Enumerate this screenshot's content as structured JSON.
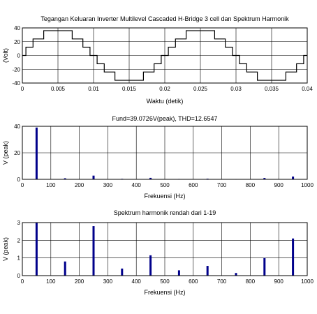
{
  "chart_data": [
    {
      "type": "line",
      "title": "Tegangan Keluaran Inverter Multilevel Cascaded H-Bridge 3 cell dan Spektrum Harmonik",
      "xlabel": "Waktu (detik)",
      "ylabel": "(Volt)",
      "xlim": [
        0,
        0.04
      ],
      "ylim": [
        -40,
        40
      ],
      "xticks": [
        0,
        0.005,
        0.01,
        0.015,
        0.02,
        0.025,
        0.03,
        0.035,
        0.04
      ],
      "xtick_labels": [
        "0",
        "0.005",
        "0.01",
        "0.015",
        "0.02",
        "0.025",
        "0.03",
        "0.035",
        "0.04"
      ],
      "yticks": [
        -40,
        -20,
        0,
        20,
        40
      ],
      "ytick_labels": [
        "-40",
        "-20",
        "0",
        "20",
        "40"
      ],
      "grid": true,
      "series": [
        {
          "color": "#000000",
          "x": [
            0,
            0.0005,
            0.0005,
            0.0015,
            0.0015,
            0.003,
            0.003,
            0.007,
            0.007,
            0.0085,
            0.0085,
            0.0095,
            0.0095,
            0.0105,
            0.0105,
            0.0115,
            0.0115,
            0.013,
            0.013,
            0.017,
            0.017,
            0.0185,
            0.0185,
            0.0195,
            0.0195,
            0.0205,
            0.0205,
            0.0215,
            0.0215,
            0.023,
            0.023,
            0.027,
            0.027,
            0.0285,
            0.0285,
            0.0295,
            0.0295,
            0.0305,
            0.0305,
            0.0315,
            0.0315,
            0.033,
            0.033,
            0.037,
            0.037,
            0.0385,
            0.0385,
            0.0395,
            0.0395,
            0.04
          ],
          "y": [
            0,
            0,
            12,
            12,
            24,
            24,
            36,
            36,
            24,
            24,
            12,
            12,
            0,
            0,
            -12,
            -12,
            -24,
            -24,
            -36,
            -36,
            -24,
            -24,
            -12,
            -12,
            0,
            0,
            12,
            12,
            24,
            24,
            36,
            36,
            24,
            24,
            12,
            12,
            0,
            0,
            -12,
            -12,
            -24,
            -24,
            -36,
            -36,
            -24,
            -24,
            -12,
            -12,
            0,
            0
          ]
        }
      ]
    },
    {
      "type": "bar",
      "title": "Fund=39.0726V(peak), THD=12.6547",
      "xlabel": "Frekuensi (Hz)",
      "ylabel": "V (peak)",
      "xlim": [
        0,
        1000
      ],
      "ylim": [
        0,
        40
      ],
      "xticks": [
        0,
        100,
        200,
        300,
        400,
        500,
        600,
        700,
        800,
        900,
        1000
      ],
      "xtick_labels": [
        "0",
        "100",
        "200",
        "300",
        "400",
        "500",
        "600",
        "700",
        "800",
        "900",
        "1000"
      ],
      "yticks": [
        0,
        20,
        40
      ],
      "ytick_labels": [
        "0",
        "20",
        "40"
      ],
      "grid": true,
      "series": [
        {
          "color": "#00008b",
          "x": [
            50,
            150,
            250,
            350,
            450,
            550,
            650,
            750,
            850,
            950
          ],
          "values": [
            39.07,
            0.8,
            2.8,
            0.4,
            1.1,
            0.3,
            0.5,
            0.15,
            1.0,
            2.1
          ]
        }
      ]
    },
    {
      "type": "bar",
      "title": "Spektrum harmonik rendah dari 1-19",
      "xlabel": "Frekuensi (Hz)",
      "ylabel": "V (peak)",
      "xlim": [
        0,
        1000
      ],
      "ylim": [
        0,
        3
      ],
      "xticks": [
        0,
        100,
        200,
        300,
        400,
        500,
        600,
        700,
        800,
        900,
        1000
      ],
      "xtick_labels": [
        "0",
        "100",
        "200",
        "300",
        "400",
        "500",
        "600",
        "700",
        "800",
        "900",
        "1000"
      ],
      "yticks": [
        0,
        1,
        2,
        3
      ],
      "ytick_labels": [
        "0",
        "1",
        "2",
        "3"
      ],
      "grid": true,
      "series": [
        {
          "color": "#00008b",
          "x": [
            50,
            150,
            250,
            350,
            450,
            550,
            650,
            750,
            850,
            950
          ],
          "values": [
            3.0,
            0.8,
            2.8,
            0.4,
            1.15,
            0.3,
            0.55,
            0.15,
            1.0,
            2.1
          ]
        }
      ]
    }
  ]
}
